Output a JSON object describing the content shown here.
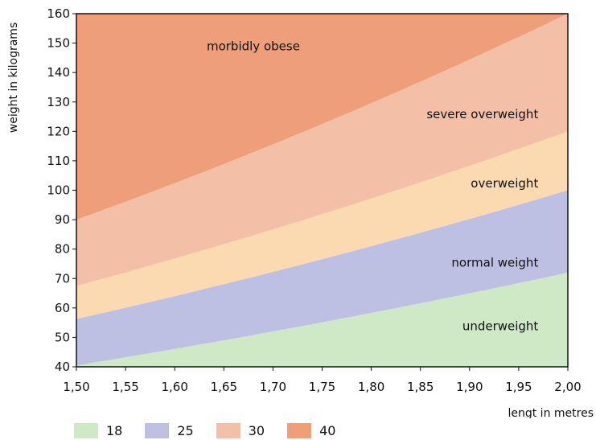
{
  "chart_data": {
    "type": "area",
    "xlabel": "lengt in metres",
    "ylabel": "weight in kilograms",
    "xlim": [
      1.5,
      2.0
    ],
    "ylim": [
      40,
      160
    ],
    "x_ticks": [
      "1,50",
      "1,55",
      "1,60",
      "1,65",
      "1,70",
      "1,75",
      "1,80",
      "1,85",
      "1,90",
      "1,95",
      "2,00"
    ],
    "y_ticks": [
      "40",
      "50",
      "60",
      "70",
      "80",
      "90",
      "100",
      "110",
      "120",
      "130",
      "140",
      "150",
      "160"
    ],
    "thresholds": [
      18,
      25,
      30,
      40
    ],
    "bands": [
      {
        "label": "underweight",
        "color": "#cfe8c5"
      },
      {
        "label": "normal weight",
        "color": "#bdbfe3"
      },
      {
        "label": "overweight",
        "color": "#fbd9b1"
      },
      {
        "label": "severe overweight",
        "color": "#f3c0a7"
      },
      {
        "label": "morbidly obese",
        "color": "#ee9e79"
      }
    ],
    "legend": [
      {
        "label": "18",
        "color": "#cfe8c5"
      },
      {
        "label": "25",
        "color": "#bdbfe3"
      },
      {
        "label": "30",
        "color": "#f3c0a7"
      },
      {
        "label": "40",
        "color": "#ee9e79"
      }
    ],
    "legend_position": "bottom-left",
    "grid": false
  }
}
